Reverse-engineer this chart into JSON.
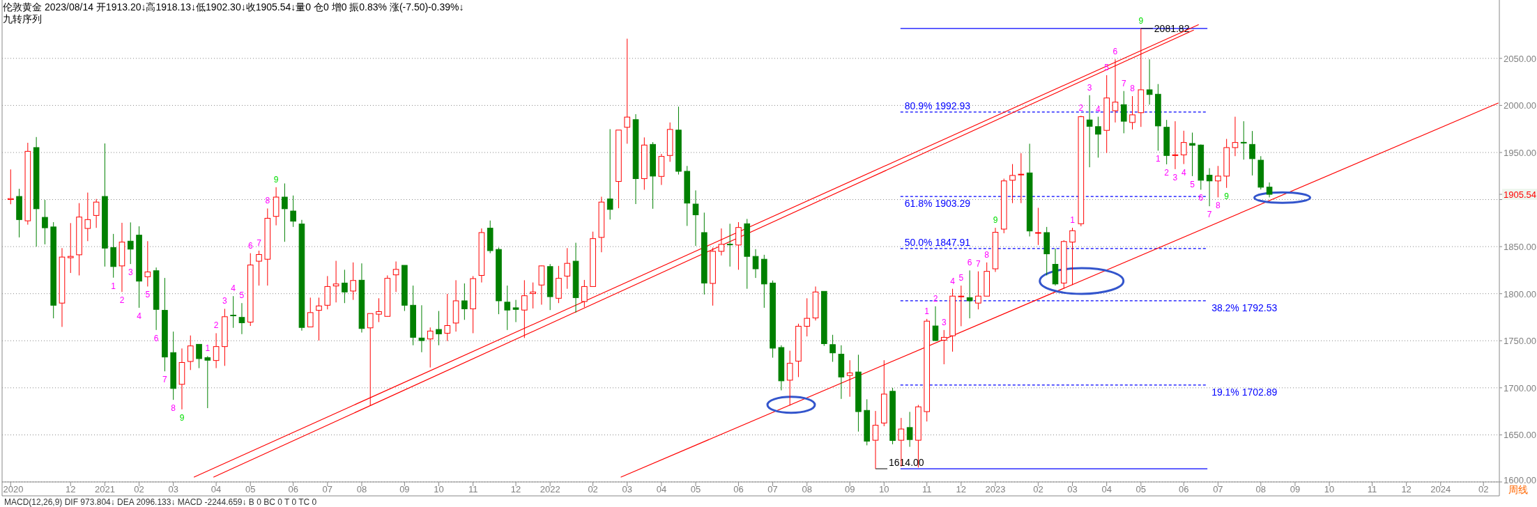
{
  "chart_data": {
    "type": "candlestick",
    "title": "伦敦黄金 2023/08/14 开1913.20↓高1918.13↓低1902.30↓收1905.54↓量0  仓0 增0 振0.83% 涨(-7.50)-0.39%↓",
    "subtitle": "九转序列",
    "x": [
      "2020-10-19",
      "2020-10-26",
      "2020-11-02",
      "2020-11-09",
      "2020-11-16",
      "2020-11-23",
      "2020-11-30",
      "2020-12-07",
      "2020-12-14",
      "2020-12-21",
      "2020-12-28",
      "2021-01-04",
      "2021-01-11",
      "2021-01-18",
      "2021-01-25",
      "2021-02-01",
      "2021-02-08",
      "2021-02-15",
      "2021-02-22",
      "2021-03-01",
      "2021-03-08",
      "2021-03-15",
      "2021-03-22",
      "2021-03-29",
      "2021-04-05",
      "2021-04-12",
      "2021-04-19",
      "2021-04-26",
      "2021-05-03",
      "2021-05-10",
      "2021-05-17",
      "2021-05-24",
      "2021-05-31",
      "2021-06-07",
      "2021-06-14",
      "2021-06-21",
      "2021-06-28",
      "2021-07-05",
      "2021-07-12",
      "2021-07-19",
      "2021-07-26",
      "2021-08-02",
      "2021-08-09",
      "2021-08-16",
      "2021-08-23",
      "2021-08-30",
      "2021-09-06",
      "2021-09-13",
      "2021-09-20",
      "2021-09-27",
      "2021-10-04",
      "2021-10-11",
      "2021-10-18",
      "2021-10-25",
      "2021-11-01",
      "2021-11-08",
      "2021-11-15",
      "2021-11-22",
      "2021-11-29",
      "2021-12-06",
      "2021-12-13",
      "2021-12-20",
      "2021-12-27",
      "2022-01-03",
      "2022-01-10",
      "2022-01-17",
      "2022-01-24",
      "2022-01-31",
      "2022-02-07",
      "2022-02-14",
      "2022-02-21",
      "2022-02-28",
      "2022-03-07",
      "2022-03-14",
      "2022-03-21",
      "2022-03-28",
      "2022-04-04",
      "2022-04-11",
      "2022-04-18",
      "2022-04-25",
      "2022-05-02",
      "2022-05-09",
      "2022-05-16",
      "2022-05-23",
      "2022-05-30",
      "2022-06-06",
      "2022-06-13",
      "2022-06-20",
      "2022-06-27",
      "2022-07-04",
      "2022-07-11",
      "2022-07-18",
      "2022-07-25",
      "2022-08-01",
      "2022-08-08",
      "2022-08-15",
      "2022-08-22",
      "2022-08-29",
      "2022-09-05",
      "2022-09-12",
      "2022-09-19",
      "2022-09-26",
      "2022-10-03",
      "2022-10-10",
      "2022-10-17",
      "2022-10-24",
      "2022-10-31",
      "2022-11-07",
      "2022-11-14",
      "2022-11-21",
      "2022-11-28",
      "2022-12-05",
      "2022-12-12",
      "2022-12-19",
      "2022-12-26",
      "2023-01-02",
      "2023-01-09",
      "2023-01-16",
      "2023-01-23",
      "2023-01-30",
      "2023-02-06",
      "2023-02-13",
      "2023-02-20",
      "2023-02-27",
      "2023-03-06",
      "2023-03-13",
      "2023-03-20",
      "2023-03-27",
      "2023-04-03",
      "2023-04-10",
      "2023-04-17",
      "2023-04-24",
      "2023-05-01",
      "2023-05-08",
      "2023-05-15",
      "2023-05-22",
      "2023-05-29",
      "2023-06-05",
      "2023-06-12",
      "2023-06-19",
      "2023-06-26",
      "2023-07-03",
      "2023-07-10",
      "2023-07-17",
      "2023-07-24",
      "2023-07-31",
      "2023-08-07",
      "2023-08-14"
    ],
    "ohlc": [
      [
        1900.0,
        1932.0,
        1895.0,
        1901.0
      ],
      [
        1903.3,
        1911.4,
        1859.8,
        1878.7
      ],
      [
        1877.4,
        1960.3,
        1873.3,
        1951.2
      ],
      [
        1955.2,
        1966.4,
        1850.0,
        1890.2
      ],
      [
        1881.1,
        1899.6,
        1852.4,
        1870.0
      ],
      [
        1870.9,
        1876.0,
        1773.8,
        1787.7
      ],
      [
        1790.0,
        1848.4,
        1764.7,
        1838.9
      ],
      [
        1838.2,
        1875.0,
        1822.0,
        1839.6
      ],
      [
        1841.3,
        1896.2,
        1819.4,
        1881.4
      ],
      [
        1869.3,
        1907.4,
        1855.8,
        1878.7
      ],
      [
        1883.1,
        1900.6,
        1869.9,
        1897.3
      ],
      [
        1903.3,
        1959.6,
        1828.8,
        1848.4
      ],
      [
        1849.0,
        1863.5,
        1817.0,
        1828.8
      ],
      [
        1829.5,
        1875.3,
        1801.8,
        1854.8
      ],
      [
        1855.8,
        1875.7,
        1831.5,
        1847.3
      ],
      [
        1862.2,
        1871.6,
        1785.0,
        1813.3
      ],
      [
        1818.0,
        1855.8,
        1807.6,
        1823.1
      ],
      [
        1824.4,
        1827.8,
        1761.4,
        1783.3
      ],
      [
        1782.3,
        1816.7,
        1717.5,
        1732.7
      ],
      [
        1737.4,
        1759.7,
        1687.2,
        1699.3
      ],
      [
        1703.7,
        1741.8,
        1677.1,
        1726.9
      ],
      [
        1728.0,
        1755.6,
        1718.9,
        1744.5
      ],
      [
        1746.2,
        1746.2,
        1720.9,
        1731.0
      ],
      [
        1732.0,
        1733.7,
        1678.4,
        1729.3
      ],
      [
        1729.0,
        1758.0,
        1720.9,
        1743.8
      ],
      [
        1743.8,
        1783.9,
        1723.3,
        1775.5
      ],
      [
        1777.2,
        1797.4,
        1763.7,
        1776.8
      ],
      [
        1774.8,
        1790.0,
        1757.0,
        1769.1
      ],
      [
        1769.8,
        1843.0,
        1765.7,
        1830.5
      ],
      [
        1834.5,
        1845.7,
        1808.6,
        1841.6
      ],
      [
        1836.6,
        1890.5,
        1808.6,
        1880.1
      ],
      [
        1882.1,
        1913.1,
        1872.6,
        1902.6
      ],
      [
        1902.6,
        1917.1,
        1855.1,
        1890.2
      ],
      [
        1887.8,
        1904.3,
        1870.9,
        1877.0
      ],
      [
        1874.0,
        1878.4,
        1760.7,
        1764.1
      ],
      [
        1764.7,
        1795.8,
        1764.7,
        1779.9
      ],
      [
        1782.3,
        1795.8,
        1750.2,
        1787.0
      ],
      [
        1787.7,
        1818.7,
        1783.3,
        1807.6
      ],
      [
        1808.2,
        1834.9,
        1790.7,
        1810.3
      ],
      [
        1811.3,
        1825.4,
        1790.0,
        1801.8
      ],
      [
        1802.8,
        1833.2,
        1793.4,
        1814.0
      ],
      [
        1814.3,
        1832.2,
        1758.7,
        1763.0
      ],
      [
        1763.7,
        1778.9,
        1681.1,
        1778.9
      ],
      [
        1778.2,
        1795.1,
        1769.8,
        1780.9
      ],
      [
        1775.9,
        1819.4,
        1775.5,
        1816.3
      ],
      [
        1820.0,
        1834.2,
        1801.8,
        1825.8
      ],
      [
        1830.1,
        1830.1,
        1781.6,
        1787.7
      ],
      [
        1787.7,
        1808.6,
        1745.2,
        1753.6
      ],
      [
        1752.9,
        1787.7,
        1737.8,
        1750.2
      ],
      [
        1751.9,
        1764.1,
        1721.6,
        1760.3
      ],
      [
        1762.0,
        1781.6,
        1745.2,
        1757.3
      ],
      [
        1758.0,
        1799.8,
        1749.6,
        1766.1
      ],
      [
        1768.8,
        1814.3,
        1759.7,
        1792.4
      ],
      [
        1792.4,
        1810.9,
        1772.2,
        1783.9
      ],
      [
        1783.9,
        1818.7,
        1758.0,
        1816.0
      ],
      [
        1819.4,
        1869.3,
        1811.9,
        1864.9
      ],
      [
        1869.6,
        1877.7,
        1843.0,
        1845.7
      ],
      [
        1847.0,
        1849.0,
        1778.2,
        1792.4
      ],
      [
        1791.0,
        1808.6,
        1761.4,
        1782.6
      ],
      [
        1785.0,
        1793.4,
        1769.8,
        1783.3
      ],
      [
        1782.6,
        1814.3,
        1752.9,
        1797.8
      ],
      [
        1800.1,
        1811.9,
        1784.3,
        1801.8
      ],
      [
        1809.2,
        1830.1,
        1788.3,
        1829.5
      ],
      [
        1828.8,
        1831.5,
        1782.6,
        1796.8
      ],
      [
        1795.1,
        1829.5,
        1790.0,
        1816.3
      ],
      [
        1818.7,
        1848.4,
        1805.2,
        1832.2
      ],
      [
        1834.5,
        1854.1,
        1779.9,
        1795.8
      ],
      [
        1791.7,
        1814.6,
        1785.6,
        1807.6
      ],
      [
        1807.6,
        1865.9,
        1807.6,
        1858.5
      ],
      [
        1859.8,
        1903.0,
        1844.0,
        1897.3
      ],
      [
        1900.6,
        1974.8,
        1878.7,
        1889.5
      ],
      [
        1919.2,
        1973.8,
        1890.8,
        1973.8
      ],
      [
        1976.8,
        2070.9,
        1959.3,
        1987.6
      ],
      [
        1984.9,
        1990.7,
        1895.2,
        1922.2
      ],
      [
        1922.2,
        1966.0,
        1910.4,
        1957.9
      ],
      [
        1958.6,
        1961.0,
        1890.2,
        1924.9
      ],
      [
        1924.6,
        1948.5,
        1915.5,
        1945.8
      ],
      [
        1946.8,
        1981.9,
        1940.1,
        1974.5
      ],
      [
        1973.8,
        1998.7,
        1926.6,
        1930.0
      ],
      [
        1930.0,
        1935.7,
        1872.0,
        1896.2
      ],
      [
        1895.2,
        1909.7,
        1850.7,
        1883.8
      ],
      [
        1864.9,
        1886.1,
        1799.1,
        1811.3
      ],
      [
        1810.9,
        1849.0,
        1787.3,
        1845.0
      ],
      [
        1845.0,
        1869.3,
        1840.6,
        1852.4
      ],
      [
        1852.6,
        1874.3,
        1828.8,
        1852.2
      ],
      [
        1851.7,
        1876.0,
        1825.4,
        1870.3
      ],
      [
        1874.3,
        1879.4,
        1805.2,
        1839.6
      ],
      [
        1839.6,
        1847.3,
        1816.7,
        1826.4
      ],
      [
        1836.6,
        1841.3,
        1785.0,
        1810.3
      ],
      [
        1811.3,
        1814.0,
        1732.0,
        1742.1
      ],
      [
        1742.8,
        1745.2,
        1697.3,
        1707.4
      ],
      [
        1708.1,
        1739.4,
        1681.1,
        1726.0
      ],
      [
        1728.3,
        1768.1,
        1711.4,
        1765.4
      ],
      [
        1765.4,
        1795.1,
        1754.6,
        1773.8
      ],
      [
        1774.2,
        1807.6,
        1771.5,
        1801.8
      ],
      [
        1802.5,
        1802.5,
        1744.5,
        1746.9
      ],
      [
        1745.9,
        1756.3,
        1727.6,
        1737.1
      ],
      [
        1735.7,
        1745.2,
        1688.2,
        1711.5
      ],
      [
        1713.1,
        1729.3,
        1690.5,
        1715.8
      ],
      [
        1716.8,
        1735.1,
        1653.5,
        1674.7
      ],
      [
        1676.0,
        1687.8,
        1638.9,
        1643.3
      ],
      [
        1644.3,
        1675.4,
        1614.0,
        1660.2
      ],
      [
        1662.6,
        1729.3,
        1659.2,
        1693.3
      ],
      [
        1696.3,
        1700.0,
        1640.0,
        1644.0
      ],
      [
        1644.3,
        1668.0,
        1616.4,
        1656.2
      ],
      [
        1657.8,
        1674.4,
        1637.3,
        1645.0
      ],
      [
        1644.3,
        1681.8,
        1615.3,
        1679.8
      ],
      [
        1674.7,
        1773.2,
        1664.2,
        1770.8
      ],
      [
        1765.7,
        1786.6,
        1749.6,
        1750.2
      ],
      [
        1750.6,
        1761.4,
        1725.0,
        1753.6
      ],
      [
        1755.3,
        1805.2,
        1738.4,
        1797.4
      ],
      [
        1796.8,
        1808.6,
        1765.4,
        1797.4
      ],
      [
        1795.8,
        1824.7,
        1773.8,
        1792.4
      ],
      [
        1790.0,
        1823.7,
        1783.3,
        1797.4
      ],
      [
        1797.4,
        1833.2,
        1797.1,
        1823.7
      ],
      [
        1826.4,
        1870.0,
        1823.1,
        1865.2
      ],
      [
        1868.6,
        1922.2,
        1864.2,
        1919.8
      ],
      [
        1920.5,
        1937.7,
        1896.2,
        1925.6
      ],
      [
        1926.6,
        1949.2,
        1896.2,
        1926.9
      ],
      [
        1928.3,
        1959.3,
        1860.8,
        1866.6
      ],
      [
        1864.6,
        1891.2,
        1851.7,
        1864.9
      ],
      [
        1864.9,
        1870.9,
        1819.4,
        1842.3
      ],
      [
        1831.2,
        1848.0,
        1808.6,
        1810.3
      ],
      [
        1811.3,
        1856.8,
        1805.2,
        1855.4
      ],
      [
        1854.8,
        1870.0,
        1809.2,
        1866.9
      ],
      [
        1874.3,
        1989.0,
        1871.6,
        1988.0
      ],
      [
        1984.6,
        2010.9,
        1934.3,
        1977.8
      ],
      [
        1977.5,
        1988.0,
        1944.5,
        1969.4
      ],
      [
        1973.5,
        2032.1,
        1949.5,
        2007.9
      ],
      [
        1994.4,
        2049.0,
        1981.9,
        2003.5
      ],
      [
        2000.8,
        2015.3,
        1970.4,
        1983.2
      ],
      [
        1981.9,
        2009.9,
        1974.5,
        1990.0
      ],
      [
        1992.3,
        2081.82,
        1977.2,
        2016.6
      ],
      [
        2016.6,
        2049.0,
        2000.8,
        2011.6
      ],
      [
        2011.9,
        2022.7,
        1951.9,
        1978.2
      ],
      [
        1976.8,
        1984.6,
        1937.4,
        1946.8
      ],
      [
        1947.2,
        1983.2,
        1932.3,
        1947.5
      ],
      [
        1947.5,
        1973.1,
        1937.7,
        1960.6
      ],
      [
        1959.6,
        1971.1,
        1924.9,
        1957.6
      ],
      [
        1957.9,
        1958.6,
        1910.4,
        1920.5
      ],
      [
        1925.9,
        1933.3,
        1892.9,
        1919.8
      ],
      [
        1919.8,
        1935.7,
        1902.3,
        1924.9
      ],
      [
        1924.9,
        1964.4,
        1912.4,
        1955.2
      ],
      [
        1955.2,
        1988.0,
        1946.1,
        1960.6
      ],
      [
        1960.8,
        1983.2,
        1942.4,
        1960.4
      ],
      [
        1958.6,
        1972.8,
        1925.6,
        1943.4
      ],
      [
        1941.8,
        1946.1,
        1910.7,
        1913.1
      ],
      [
        1913.2,
        1918.13,
        1902.3,
        1905.54
      ]
    ],
    "series": [
      {
        "type": "line",
        "color": "#ff0000",
        "x": [
          "2021-03-18",
          "2023-06-17"
        ],
        "values": [
          1605.2,
          2085.7
        ]
      },
      {
        "type": "line",
        "color": "#ff0000",
        "x": [
          "2021-04-03",
          "2023-06-13"
        ],
        "values": [
          1605.2,
          2080.0
        ]
      },
      {
        "type": "line",
        "color": "#ff0000",
        "x": [
          "2022-03-02",
          "2024-02-17"
        ],
        "values": [
          1605.2,
          2002.5
        ]
      }
    ],
    "xlim": [
      "2020-10-12",
      "2024-02-18"
    ],
    "xticks": [
      {
        "value": "2020-10-19",
        "label": "2020"
      },
      {
        "value": "2020-12-07",
        "label": "12"
      },
      {
        "value": "2021-01-04",
        "label": "2021"
      },
      {
        "value": "2021-02-01",
        "label": "02"
      },
      {
        "value": "2021-03-01",
        "label": "03"
      },
      {
        "value": "2021-04-05",
        "label": "04"
      },
      {
        "value": "2021-05-03",
        "label": "05"
      },
      {
        "value": "2021-06-07",
        "label": "06"
      },
      {
        "value": "2021-07-05",
        "label": "07"
      },
      {
        "value": "2021-08-02",
        "label": "08"
      },
      {
        "value": "2021-09-06",
        "label": "09"
      },
      {
        "value": "2021-10-04",
        "label": "10"
      },
      {
        "value": "2021-11-01",
        "label": "11"
      },
      {
        "value": "2021-12-06",
        "label": "12"
      },
      {
        "value": "2022-01-03",
        "label": "2022"
      },
      {
        "value": "2022-02-07",
        "label": "02"
      },
      {
        "value": "2022-03-07",
        "label": "03"
      },
      {
        "value": "2022-04-04",
        "label": "04"
      },
      {
        "value": "2022-05-02",
        "label": "05"
      },
      {
        "value": "2022-06-06",
        "label": "06"
      },
      {
        "value": "2022-07-04",
        "label": "07"
      },
      {
        "value": "2022-08-01",
        "label": "08"
      },
      {
        "value": "2022-09-05",
        "label": "09"
      },
      {
        "value": "2022-10-03",
        "label": "10"
      },
      {
        "value": "2022-11-07",
        "label": "11"
      },
      {
        "value": "2022-12-05",
        "label": "12"
      },
      {
        "value": "2023-01-02",
        "label": "2023"
      },
      {
        "value": "2023-02-06",
        "label": "02"
      },
      {
        "value": "2023-03-06",
        "label": "03"
      },
      {
        "value": "2023-04-03",
        "label": "04"
      },
      {
        "value": "2023-05-01",
        "label": "05"
      },
      {
        "value": "2023-06-05",
        "label": "06"
      },
      {
        "value": "2023-07-03",
        "label": "07"
      },
      {
        "value": "2023-08-07",
        "label": "08"
      },
      {
        "value": "2023-09-04",
        "label": "09"
      },
      {
        "value": "2023-10-02",
        "label": "10"
      },
      {
        "value": "2023-11-06",
        "label": "11"
      },
      {
        "value": "2023-12-04",
        "label": "12"
      },
      {
        "value": "2024-01-01",
        "label": "2024"
      },
      {
        "value": "2024-02-05",
        "label": "02"
      }
    ],
    "ylim": [
      1600,
      2112
    ],
    "yticks": [
      {
        "value": 1600,
        "label": "1600.00"
      },
      {
        "value": 1650,
        "label": "1650.00"
      },
      {
        "value": 1700,
        "label": "1700.00"
      },
      {
        "value": 1750,
        "label": "1750.00"
      },
      {
        "value": 1800,
        "label": "1800.00"
      },
      {
        "value": 1850,
        "label": "1850.00"
      },
      {
        "value": 1900,
        "label": null
      },
      {
        "value": 1950,
        "label": "1950.00"
      },
      {
        "value": 2000,
        "label": "2000.00"
      },
      {
        "value": 2050,
        "label": "2050.00"
      },
      {
        "value": 1905.54,
        "label": "1905.54"
      }
    ],
    "grid": "y",
    "ref_lines": [
      {
        "axis": "y",
        "value": 2081.82,
        "label": "2081.82",
        "color": "#0000ff",
        "line_style": "solid"
      },
      {
        "axis": "y",
        "value": 1992.93,
        "label": "80.9% 1992.93",
        "color": "#0000ff",
        "line_style": "dashed"
      },
      {
        "axis": "y",
        "value": 1903.29,
        "label": "61.8% 1903.29",
        "color": "#0000ff",
        "line_style": "dashed"
      },
      {
        "axis": "y",
        "value": 1847.91,
        "label": "50.0% 1847.91",
        "color": "#0000ff",
        "line_style": "dashed"
      },
      {
        "axis": "y",
        "value": 1792.53,
        "label": "38.2% 1792.53",
        "color": "#0000ff",
        "line_style": "dashed"
      },
      {
        "axis": "y",
        "value": 1702.89,
        "label": "19.1% 1702.89",
        "color": "#0000ff",
        "line_style": "dashed"
      },
      {
        "axis": "y",
        "value": 1614.0,
        "label": "1614.00",
        "color": "#0000ff",
        "line_style": "solid"
      }
    ],
    "annotations": [
      "MACD(12,26,9)  DIF 973.804↓  DEA 2096.133↓  MACD -2244.659↓  B 0  BC 0  T 0  TC 0",
      "周线",
      {
        "text": "1",
        "x": "2021-01-11",
        "y": 1817.0
      },
      {
        "text": "2",
        "x": "2021-01-18",
        "y": 1801.8
      },
      {
        "text": "3",
        "x": "2021-01-25",
        "y": 1831.5
      },
      {
        "text": "4",
        "x": "2021-02-01",
        "y": 1785.0
      },
      {
        "text": "5",
        "x": "2021-02-08",
        "y": 1807.6
      },
      {
        "text": "6",
        "x": "2021-02-15",
        "y": 1761.4
      },
      {
        "text": "7",
        "x": "2021-02-22",
        "y": 1717.5
      },
      {
        "text": "8",
        "x": "2021-03-01",
        "y": 1687.2
      },
      {
        "text": "9",
        "x": "2021-03-08",
        "y": 1677.1
      },
      {
        "text": "1",
        "x": "2021-03-29",
        "y": 1733.7
      },
      {
        "text": "2",
        "x": "2021-04-05",
        "y": 1758.0
      },
      {
        "text": "3",
        "x": "2021-04-12",
        "y": 1783.9
      },
      {
        "text": "4",
        "x": "2021-04-19",
        "y": 1797.4
      },
      {
        "text": "5",
        "x": "2021-04-26",
        "y": 1790.0
      },
      {
        "text": "6",
        "x": "2021-05-03",
        "y": 1843.0
      },
      {
        "text": "7",
        "x": "2021-05-10",
        "y": 1845.7
      },
      {
        "text": "8",
        "x": "2021-05-17",
        "y": 1890.5
      },
      {
        "text": "9",
        "x": "2021-05-24",
        "y": 1913.1
      },
      {
        "text": "1",
        "x": "2022-11-07",
        "y": 1773.2
      },
      {
        "text": "2",
        "x": "2022-11-14",
        "y": 1786.6
      },
      {
        "text": "3",
        "x": "2022-11-21",
        "y": 1761.4
      },
      {
        "text": "4",
        "x": "2022-11-28",
        "y": 1805.2
      },
      {
        "text": "5",
        "x": "2022-12-05",
        "y": 1808.6
      },
      {
        "text": "6",
        "x": "2022-12-12",
        "y": 1824.7
      },
      {
        "text": "7",
        "x": "2022-12-19",
        "y": 1823.7
      },
      {
        "text": "8",
        "x": "2022-12-26",
        "y": 1833.2
      },
      {
        "text": "9",
        "x": "2023-01-02",
        "y": 1870.0
      },
      {
        "text": "1",
        "x": "2023-03-06",
        "y": 1870.0
      },
      {
        "text": "2",
        "x": "2023-03-13",
        "y": 1989.0
      },
      {
        "text": "3",
        "x": "2023-03-20",
        "y": 2010.9
      },
      {
        "text": "4",
        "x": "2023-03-27",
        "y": 1988.0
      },
      {
        "text": "5",
        "x": "2023-04-03",
        "y": 2032.1
      },
      {
        "text": "6",
        "x": "2023-04-10",
        "y": 2049.0
      },
      {
        "text": "7",
        "x": "2023-04-17",
        "y": 2015.3
      },
      {
        "text": "8",
        "x": "2023-04-24",
        "y": 2009.9
      },
      {
        "text": "9",
        "x": "2023-05-01",
        "y": 2081.82
      },
      {
        "text": "1",
        "x": "2023-05-15",
        "y": 1951.9
      },
      {
        "text": "2",
        "x": "2023-05-22",
        "y": 1937.4
      },
      {
        "text": "3",
        "x": "2023-05-29",
        "y": 1932.3
      },
      {
        "text": "4",
        "x": "2023-06-05",
        "y": 1937.7
      },
      {
        "text": "5",
        "x": "2023-06-12",
        "y": 1924.9
      },
      {
        "text": "6",
        "x": "2023-06-19",
        "y": 1910.4
      },
      {
        "text": "7",
        "x": "2023-06-26",
        "y": 1892.9
      },
      {
        "text": "8",
        "x": "2023-07-03",
        "y": 1902.3
      },
      {
        "text": "9",
        "x": "2023-07-10",
        "y": 1912.4
      }
    ]
  }
}
